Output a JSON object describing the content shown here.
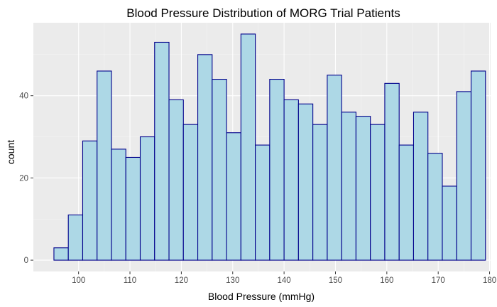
{
  "chart_data": {
    "type": "bar",
    "title": "Blood Pressure Distribution of MORG Trial Patients",
    "xlabel": "Blood Pressure (mmHg)",
    "ylabel": "count",
    "bin_width": 2.8,
    "bin_start": 95.2,
    "bins": [
      {
        "x_start": 95.2,
        "x_end": 98.0,
        "count": 3
      },
      {
        "x_start": 98.0,
        "x_end": 100.8,
        "count": 11
      },
      {
        "x_start": 100.8,
        "x_end": 103.6,
        "count": 29
      },
      {
        "x_start": 103.6,
        "x_end": 106.4,
        "count": 46
      },
      {
        "x_start": 106.4,
        "x_end": 109.2,
        "count": 27
      },
      {
        "x_start": 109.2,
        "x_end": 112.0,
        "count": 25
      },
      {
        "x_start": 112.0,
        "x_end": 114.8,
        "count": 30
      },
      {
        "x_start": 114.8,
        "x_end": 117.6,
        "count": 53
      },
      {
        "x_start": 117.6,
        "x_end": 120.4,
        "count": 39
      },
      {
        "x_start": 120.4,
        "x_end": 123.2,
        "count": 33
      },
      {
        "x_start": 123.2,
        "x_end": 126.0,
        "count": 50
      },
      {
        "x_start": 126.0,
        "x_end": 128.8,
        "count": 44
      },
      {
        "x_start": 128.8,
        "x_end": 131.6,
        "count": 31
      },
      {
        "x_start": 131.6,
        "x_end": 134.4,
        "count": 55
      },
      {
        "x_start": 134.4,
        "x_end": 137.2,
        "count": 28
      },
      {
        "x_start": 137.2,
        "x_end": 140.0,
        "count": 44
      },
      {
        "x_start": 140.0,
        "x_end": 142.8,
        "count": 39
      },
      {
        "x_start": 142.8,
        "x_end": 145.6,
        "count": 38
      },
      {
        "x_start": 145.6,
        "x_end": 148.4,
        "count": 33
      },
      {
        "x_start": 148.4,
        "x_end": 151.2,
        "count": 45
      },
      {
        "x_start": 151.2,
        "x_end": 154.0,
        "count": 36
      },
      {
        "x_start": 154.0,
        "x_end": 156.8,
        "count": 35
      },
      {
        "x_start": 156.8,
        "x_end": 159.6,
        "count": 33
      },
      {
        "x_start": 159.6,
        "x_end": 162.4,
        "count": 43
      },
      {
        "x_start": 162.4,
        "x_end": 165.2,
        "count": 28
      },
      {
        "x_start": 165.2,
        "x_end": 168.0,
        "count": 36
      },
      {
        "x_start": 168.0,
        "x_end": 170.8,
        "count": 26
      },
      {
        "x_start": 170.8,
        "x_end": 173.6,
        "count": 18
      },
      {
        "x_start": 173.6,
        "x_end": 176.4,
        "count": 41
      },
      {
        "x_start": 176.4,
        "x_end": 179.2,
        "count": 46
      }
    ],
    "x_ticks": [
      "100",
      "110",
      "120",
      "130",
      "140",
      "150",
      "160",
      "170",
      "180"
    ],
    "y_ticks": [
      "0",
      "20",
      "40"
    ],
    "xlim": [
      91.2,
      180.2
    ],
    "ylim": [
      -2.75,
      57.75
    ],
    "grid": true,
    "legend": "none",
    "colors": {
      "bar_fill": "#add8e6",
      "bar_stroke": "#00008b",
      "panel_bg": "#ebebeb",
      "grid_major": "#ffffff",
      "grid_minor": "#f5f5f5",
      "tick_text": "#4d4d4d",
      "tick_mark": "#333333"
    }
  }
}
